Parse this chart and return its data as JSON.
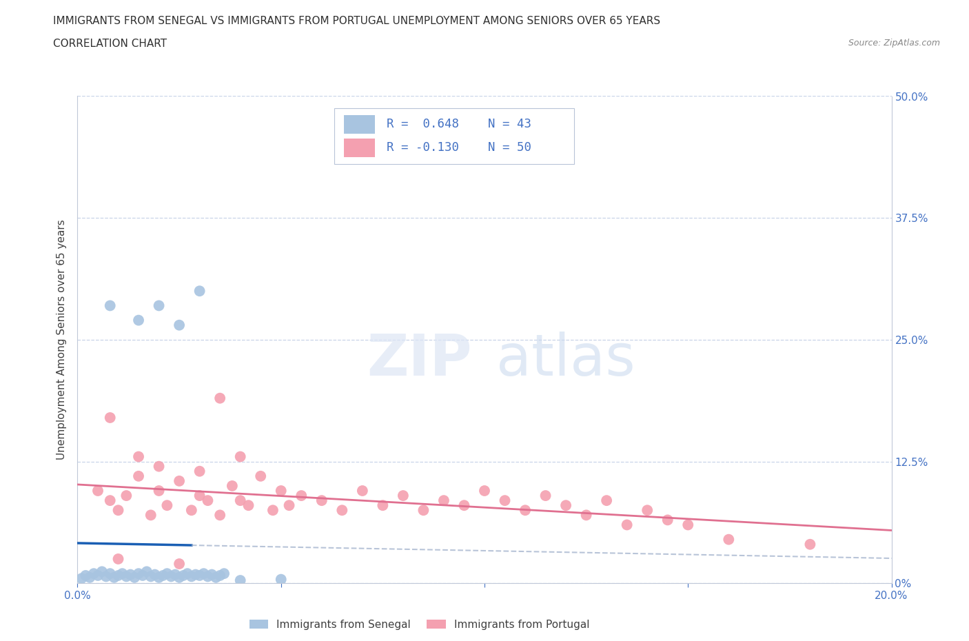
{
  "title_line1": "IMMIGRANTS FROM SENEGAL VS IMMIGRANTS FROM PORTUGAL UNEMPLOYMENT AMONG SENIORS OVER 65 YEARS",
  "title_line2": "CORRELATION CHART",
  "source": "Source: ZipAtlas.com",
  "ylabel": "Unemployment Among Seniors over 65 years",
  "xlim": [
    0.0,
    0.2
  ],
  "ylim": [
    0.0,
    0.5
  ],
  "xticks": [
    0.0,
    0.05,
    0.1,
    0.15,
    0.2
  ],
  "xtick_labels": [
    "0.0%",
    "",
    "",
    "",
    "20.0%"
  ],
  "ytick_labels_right": [
    "0%",
    "12.5%",
    "25.0%",
    "37.5%",
    "50.0%"
  ],
  "yticks": [
    0.0,
    0.125,
    0.25,
    0.375,
    0.5
  ],
  "senegal_color": "#a8c4e0",
  "portugal_color": "#f4a0b0",
  "senegal_line_color": "#1a5fb4",
  "portugal_line_color": "#e07090",
  "senegal_scatter": [
    [
      0.001,
      0.005
    ],
    [
      0.002,
      0.008
    ],
    [
      0.003,
      0.006
    ],
    [
      0.004,
      0.01
    ],
    [
      0.005,
      0.008
    ],
    [
      0.006,
      0.012
    ],
    [
      0.007,
      0.007
    ],
    [
      0.008,
      0.01
    ],
    [
      0.009,
      0.006
    ],
    [
      0.01,
      0.008
    ],
    [
      0.011,
      0.01
    ],
    [
      0.012,
      0.007
    ],
    [
      0.013,
      0.009
    ],
    [
      0.014,
      0.006
    ],
    [
      0.015,
      0.01
    ],
    [
      0.016,
      0.008
    ],
    [
      0.017,
      0.012
    ],
    [
      0.018,
      0.007
    ],
    [
      0.019,
      0.009
    ],
    [
      0.02,
      0.006
    ],
    [
      0.021,
      0.008
    ],
    [
      0.022,
      0.01
    ],
    [
      0.023,
      0.007
    ],
    [
      0.024,
      0.009
    ],
    [
      0.025,
      0.006
    ],
    [
      0.026,
      0.008
    ],
    [
      0.027,
      0.01
    ],
    [
      0.028,
      0.007
    ],
    [
      0.029,
      0.009
    ],
    [
      0.03,
      0.008
    ],
    [
      0.031,
      0.01
    ],
    [
      0.032,
      0.007
    ],
    [
      0.033,
      0.009
    ],
    [
      0.034,
      0.006
    ],
    [
      0.035,
      0.008
    ],
    [
      0.036,
      0.01
    ],
    [
      0.008,
      0.285
    ],
    [
      0.02,
      0.285
    ],
    [
      0.03,
      0.3
    ],
    [
      0.015,
      0.27
    ],
    [
      0.025,
      0.265
    ],
    [
      0.04,
      0.003
    ],
    [
      0.05,
      0.004
    ]
  ],
  "portugal_scatter": [
    [
      0.005,
      0.095
    ],
    [
      0.008,
      0.085
    ],
    [
      0.01,
      0.075
    ],
    [
      0.012,
      0.09
    ],
    [
      0.015,
      0.11
    ],
    [
      0.018,
      0.07
    ],
    [
      0.02,
      0.095
    ],
    [
      0.022,
      0.08
    ],
    [
      0.025,
      0.105
    ],
    [
      0.028,
      0.075
    ],
    [
      0.03,
      0.09
    ],
    [
      0.032,
      0.085
    ],
    [
      0.035,
      0.07
    ],
    [
      0.038,
      0.1
    ],
    [
      0.04,
      0.085
    ],
    [
      0.042,
      0.08
    ],
    [
      0.045,
      0.11
    ],
    [
      0.048,
      0.075
    ],
    [
      0.05,
      0.095
    ],
    [
      0.052,
      0.08
    ],
    [
      0.055,
      0.09
    ],
    [
      0.06,
      0.085
    ],
    [
      0.065,
      0.075
    ],
    [
      0.07,
      0.095
    ],
    [
      0.075,
      0.08
    ],
    [
      0.08,
      0.09
    ],
    [
      0.085,
      0.075
    ],
    [
      0.09,
      0.085
    ],
    [
      0.095,
      0.08
    ],
    [
      0.1,
      0.095
    ],
    [
      0.105,
      0.085
    ],
    [
      0.11,
      0.075
    ],
    [
      0.115,
      0.09
    ],
    [
      0.12,
      0.08
    ],
    [
      0.125,
      0.07
    ],
    [
      0.13,
      0.085
    ],
    [
      0.135,
      0.06
    ],
    [
      0.14,
      0.075
    ],
    [
      0.145,
      0.065
    ],
    [
      0.15,
      0.06
    ],
    [
      0.008,
      0.17
    ],
    [
      0.015,
      0.13
    ],
    [
      0.02,
      0.12
    ],
    [
      0.03,
      0.115
    ],
    [
      0.035,
      0.19
    ],
    [
      0.04,
      0.13
    ],
    [
      0.01,
      0.025
    ],
    [
      0.025,
      0.02
    ],
    [
      0.16,
      0.045
    ],
    [
      0.18,
      0.04
    ]
  ],
  "background_color": "#ffffff",
  "grid_color": "#c8d4e8",
  "title_color": "#303030",
  "axis_label_color": "#404040",
  "tick_color": "#4472c4"
}
